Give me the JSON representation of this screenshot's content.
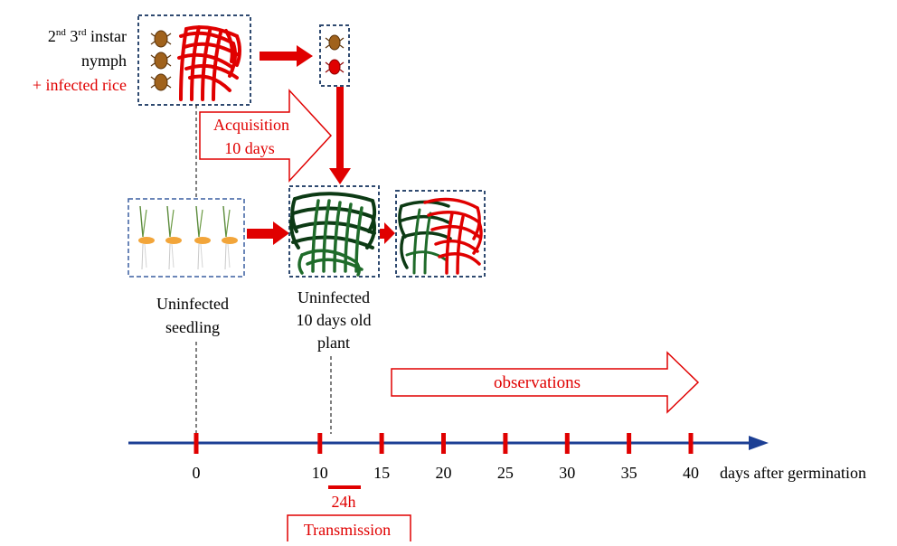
{
  "nymph_label": {
    "line1_prefix": "2",
    "line1_sup1": "nd",
    "line1_mid": " 3",
    "line1_sup2": "rd",
    "line1_suffix": " instar",
    "line2": "nymph",
    "line3": "+ infected rice"
  },
  "acquisition": {
    "line1": "Acquisition",
    "line2": "10 days"
  },
  "seedling_label": {
    "line1": "Uninfected",
    "line2": "seedling"
  },
  "plant_label": {
    "line1": "Uninfected",
    "line2": "10 days old",
    "line3": "plant"
  },
  "observations_label": "observations",
  "timeline": {
    "ticks": [
      "0",
      "10",
      "15",
      "20",
      "25",
      "30",
      "35",
      "40"
    ],
    "unit_label": "days after germination"
  },
  "transmission": {
    "duration": "24h",
    "label": "Transmission"
  },
  "colors": {
    "red": "#e00000",
    "axis_blue": "#1c3f94",
    "box_dash": "#2f4a70",
    "green": "#1f6b2a",
    "dark_green": "#0c3a14",
    "nymph_brown": "#a0621c",
    "seed_orange": "#f2a53a"
  }
}
